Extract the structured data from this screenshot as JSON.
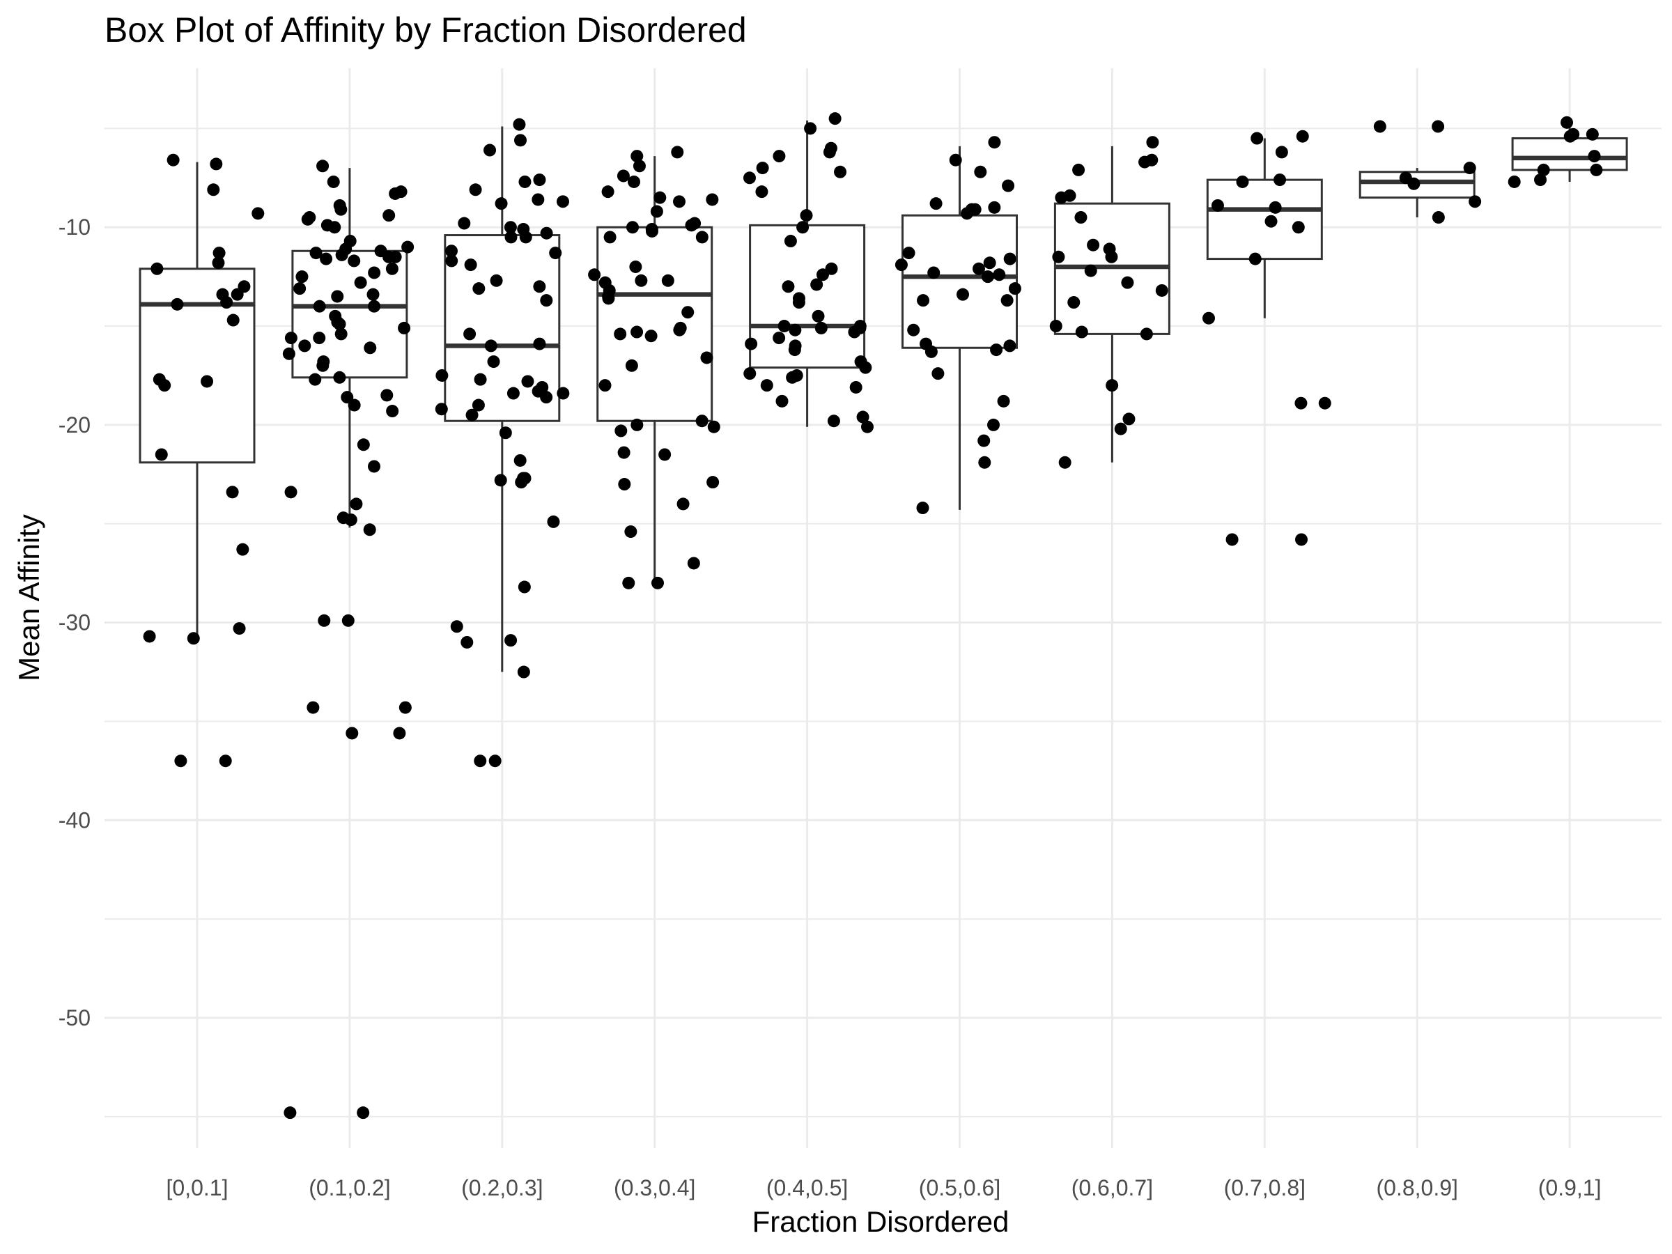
{
  "chart_data": {
    "type": "box",
    "title": "Box Plot of Affinity by Fraction Disordered",
    "xlabel": "Fraction Disordered",
    "ylabel": "Mean Affinity",
    "ylim": [
      -56.5,
      -3.2
    ],
    "yticks": [
      -50,
      -40,
      -30,
      -20,
      -10
    ],
    "ytick_labels": [
      "-50",
      "-40",
      "-30",
      "-20",
      "-10"
    ],
    "grid": true,
    "legend": "none",
    "categories": [
      "[0,0.1]",
      "(0.1,0.2]",
      "(0.2,0.3]",
      "(0.3,0.4]",
      "(0.4,0.5]",
      "(0.5,0.6]",
      "(0.6,0.7]",
      "(0.7,0.8]",
      "(0.8,0.9]",
      "(0.9,1]"
    ],
    "boxes": [
      {
        "category": "[0,0.1]",
        "whisker_low": -30.7,
        "q1": -21.9,
        "median": -13.9,
        "q3": -12.1,
        "whisker_high": -6.7
      },
      {
        "category": "(0.1,0.2]",
        "whisker_low": -25.2,
        "q1": -17.6,
        "median": -14.0,
        "q3": -11.2,
        "whisker_high": -7.0
      },
      {
        "category": "(0.2,0.3]",
        "whisker_low": -32.5,
        "q1": -19.8,
        "median": -16.0,
        "q3": -10.4,
        "whisker_high": -4.9
      },
      {
        "category": "(0.3,0.4]",
        "whisker_low": -28.0,
        "q1": -19.8,
        "median": -13.4,
        "q3": -10.0,
        "whisker_high": -6.4
      },
      {
        "category": "(0.4,0.5]",
        "whisker_low": -20.1,
        "q1": -17.1,
        "median": -15.0,
        "q3": -9.9,
        "whisker_high": -4.6
      },
      {
        "category": "(0.5,0.6]",
        "whisker_low": -24.3,
        "q1": -16.1,
        "median": -12.5,
        "q3": -9.4,
        "whisker_high": -5.9
      },
      {
        "category": "(0.6,0.7]",
        "whisker_low": -21.9,
        "q1": -15.4,
        "median": -12.0,
        "q3": -8.8,
        "whisker_high": -5.9
      },
      {
        "category": "(0.7,0.8]",
        "whisker_low": -14.6,
        "q1": -11.6,
        "median": -9.1,
        "q3": -7.6,
        "whisker_high": -5.5
      },
      {
        "category": "(0.8,0.9]",
        "whisker_low": -9.5,
        "q1": -8.5,
        "median": -7.7,
        "q3": -7.2,
        "whisker_high": -7.0
      },
      {
        "category": "(0.9,1]",
        "whisker_low": -7.7,
        "q1": -7.1,
        "median": -6.5,
        "q3": -5.5,
        "whisker_high": -4.9
      }
    ],
    "points": [
      {
        "category": "[0,0.1]",
        "values": [
          -6.8,
          -6.6,
          -8.1,
          -9.3,
          -11.3,
          -11.8,
          -12.1,
          -13.0,
          -13.4,
          -13.4,
          -13.8,
          -13.9,
          -14.7,
          -17.7,
          -17.8,
          -18.0,
          -21.5,
          -23.4,
          -26.3,
          -30.3,
          -30.7,
          -30.8,
          -37.0,
          -37.0
        ]
      },
      {
        "category": "(0.1,0.2]",
        "values": [
          -6.9,
          -7.7,
          -8.2,
          -8.3,
          -8.9,
          -9.1,
          -9.4,
          -9.5,
          -9.6,
          -9.9,
          -10.0,
          -10.7,
          -11.0,
          -11.1,
          -11.2,
          -11.3,
          -11.4,
          -11.5,
          -11.5,
          -11.6,
          -11.7,
          -12.1,
          -12.3,
          -12.5,
          -12.8,
          -13.1,
          -13.4,
          -13.5,
          -14.0,
          -14.0,
          -14.5,
          -14.8,
          -14.9,
          -15.1,
          -15.4,
          -15.6,
          -15.6,
          -16.0,
          -16.1,
          -16.4,
          -16.8,
          -17.0,
          -17.6,
          -17.7,
          -18.5,
          -18.6,
          -19.0,
          -19.3,
          -21.0,
          -22.1,
          -23.4,
          -24.0,
          -24.7,
          -24.8,
          -25.3,
          -29.9,
          -29.9,
          -34.3,
          -34.3,
          -35.6,
          -35.6,
          -54.8,
          -54.8
        ]
      },
      {
        "category": "(0.2,0.3]",
        "values": [
          -4.8,
          -5.6,
          -6.1,
          -7.6,
          -7.7,
          -8.1,
          -8.6,
          -8.7,
          -8.8,
          -9.8,
          -10.0,
          -10.1,
          -10.3,
          -10.5,
          -10.5,
          -11.2,
          -11.3,
          -11.7,
          -11.9,
          -12.7,
          -13.0,
          -13.1,
          -13.7,
          -15.4,
          -15.9,
          -16.0,
          -16.8,
          -17.5,
          -17.7,
          -17.8,
          -18.1,
          -18.3,
          -18.4,
          -18.4,
          -18.6,
          -19.0,
          -19.2,
          -19.5,
          -20.4,
          -21.8,
          -22.7,
          -22.7,
          -22.8,
          -22.9,
          -24.9,
          -28.2,
          -30.2,
          -30.9,
          -31.0,
          -32.5,
          -37.0,
          -37.0
        ]
      },
      {
        "category": "(0.3,0.4]",
        "values": [
          -6.2,
          -6.4,
          -6.9,
          -7.4,
          -7.7,
          -8.2,
          -8.5,
          -8.6,
          -8.7,
          -9.2,
          -9.8,
          -9.9,
          -10.0,
          -10.1,
          -10.2,
          -10.5,
          -10.5,
          -12.0,
          -12.4,
          -12.7,
          -12.7,
          -12.8,
          -13.2,
          -13.5,
          -13.6,
          -14.3,
          -15.1,
          -15.2,
          -15.3,
          -15.4,
          -15.5,
          -16.6,
          -17.0,
          -18.0,
          -19.8,
          -20.0,
          -20.1,
          -20.3,
          -21.4,
          -21.5,
          -22.9,
          -23.0,
          -24.0,
          -25.4,
          -27.0,
          -28.0,
          -28.0
        ]
      },
      {
        "category": "(0.4,0.5]",
        "values": [
          -4.5,
          -5.0,
          -6.0,
          -6.2,
          -6.4,
          -7.0,
          -7.2,
          -7.5,
          -8.2,
          -9.4,
          -10.0,
          -10.7,
          -12.1,
          -12.4,
          -12.9,
          -13.0,
          -13.6,
          -13.8,
          -14.5,
          -15.0,
          -15.0,
          -15.1,
          -15.1,
          -15.2,
          -15.3,
          -15.6,
          -15.9,
          -16.0,
          -16.2,
          -16.8,
          -17.1,
          -17.4,
          -17.5,
          -17.6,
          -18.0,
          -18.1,
          -18.8,
          -19.6,
          -19.8,
          -20.1
        ]
      },
      {
        "category": "(0.5,0.6]",
        "values": [
          -5.7,
          -6.6,
          -7.2,
          -7.9,
          -8.8,
          -9.0,
          -9.1,
          -9.1,
          -9.3,
          -11.3,
          -11.6,
          -11.8,
          -11.9,
          -12.1,
          -12.3,
          -12.4,
          -12.5,
          -13.1,
          -13.4,
          -13.7,
          -13.7,
          -15.2,
          -15.9,
          -16.0,
          -16.2,
          -16.3,
          -17.4,
          -18.8,
          -20.0,
          -20.8,
          -21.9,
          -24.2
        ]
      },
      {
        "category": "(0.6,0.7]",
        "values": [
          -5.7,
          -6.6,
          -6.7,
          -7.1,
          -8.4,
          -8.5,
          -9.5,
          -10.9,
          -11.1,
          -11.5,
          -11.5,
          -12.2,
          -12.8,
          -13.2,
          -13.8,
          -15.0,
          -15.3,
          -15.4,
          -18.0,
          -19.7,
          -20.2,
          -21.9
        ]
      },
      {
        "category": "(0.7,0.8]",
        "values": [
          -5.4,
          -5.5,
          -6.2,
          -7.6,
          -7.7,
          -8.9,
          -9.0,
          -9.7,
          -10.0,
          -11.6,
          -14.6,
          -18.9,
          -18.9,
          -25.8,
          -25.8
        ]
      },
      {
        "category": "(0.8,0.9]",
        "values": [
          -4.9,
          -4.9,
          -7.0,
          -7.5,
          -7.8,
          -8.7,
          -9.5
        ]
      },
      {
        "category": "(0.9,1]",
        "values": [
          -4.7,
          -5.3,
          -5.3,
          -5.4,
          -6.4,
          -7.1,
          -7.1,
          -7.6,
          -7.7
        ]
      }
    ]
  }
}
